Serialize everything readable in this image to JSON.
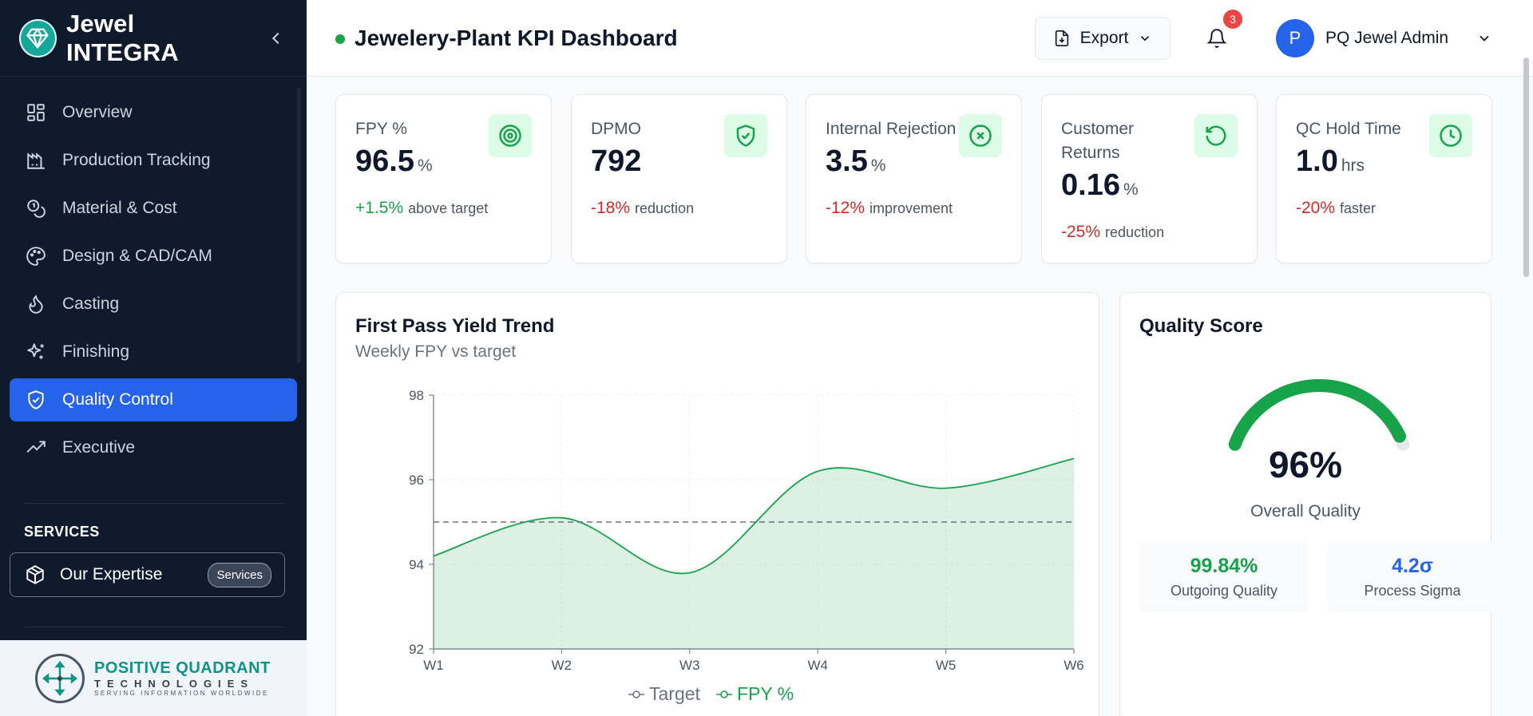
{
  "sidebar": {
    "brand": "Jewel INTEGRA",
    "items": [
      {
        "label": "Overview",
        "icon": "grid-icon"
      },
      {
        "label": "Production Tracking",
        "icon": "factory-icon"
      },
      {
        "label": "Material & Cost",
        "icon": "coins-icon"
      },
      {
        "label": "Design & CAD/CAM",
        "icon": "palette-icon"
      },
      {
        "label": "Casting",
        "icon": "flame-icon"
      },
      {
        "label": "Finishing",
        "icon": "sparkles-icon"
      },
      {
        "label": "Quality Control",
        "icon": "shield-check-icon",
        "active": true
      },
      {
        "label": "Executive",
        "icon": "trending-up-icon"
      }
    ],
    "services_heading": "SERVICES",
    "services_item": "Our Expertise",
    "services_pill": "Services",
    "footer": {
      "line1": "POSITIVE QUADRANT",
      "line2": "TECHNOLOGIES",
      "line3": "SERVING INFORMATION WORLDWIDE"
    }
  },
  "header": {
    "title": "Jewelery-Plant KPI Dashboard",
    "export_label": "Export",
    "notification_count": "3",
    "user_initial": "P",
    "user_name": "PQ Jewel Admin"
  },
  "kpis": [
    {
      "label": "FPY %",
      "value": "96.5",
      "unit": "%",
      "delta": "+1.5%",
      "delta_text": "above target",
      "icon": "target-icon"
    },
    {
      "label": "DPMO",
      "value": "792",
      "unit": "",
      "delta": "-18%",
      "delta_text": "reduction",
      "icon": "shield-check-icon"
    },
    {
      "label": "Internal Rejection",
      "value": "3.5",
      "unit": "%",
      "delta": "-12%",
      "delta_text": "improvement",
      "icon": "x-circle-icon"
    },
    {
      "label": "Customer Returns",
      "value": "0.16",
      "unit": "%",
      "delta": "-25%",
      "delta_text": "reduction",
      "icon": "rotate-ccw-icon"
    },
    {
      "label": "QC Hold Time",
      "value": "1.0",
      "unit": "hrs",
      "delta": "-20%",
      "delta_text": "faster",
      "icon": "clock-icon"
    }
  ],
  "trend": {
    "title": "First Pass Yield Trend",
    "subtitle": "Weekly FPY vs target"
  },
  "chart_data": {
    "type": "area",
    "categories": [
      "W1",
      "W2",
      "W3",
      "W4",
      "W5",
      "W6"
    ],
    "series": [
      {
        "name": "FPY %",
        "values": [
          94.2,
          95.1,
          93.8,
          96.2,
          95.8,
          96.5
        ],
        "color": "#16a34a"
      },
      {
        "name": "Target",
        "values": [
          95,
          95,
          95,
          95,
          95,
          95
        ],
        "color": "#6b7280",
        "style": "dashed"
      }
    ],
    "ylim": [
      92,
      98
    ],
    "yticks": [
      "92",
      "94",
      "96",
      "98"
    ],
    "legend": "bottom",
    "grid": true
  },
  "quality": {
    "title": "Quality Score",
    "score": 96,
    "score_label": "96%",
    "score_caption": "Overall Quality",
    "outgoing_value": "99.84%",
    "outgoing_label": "Outgoing Quality",
    "sigma_value": "4.2σ",
    "sigma_label": "Process Sigma",
    "gauge_color": "#16a34a",
    "sigma_color": "#2563eb"
  }
}
